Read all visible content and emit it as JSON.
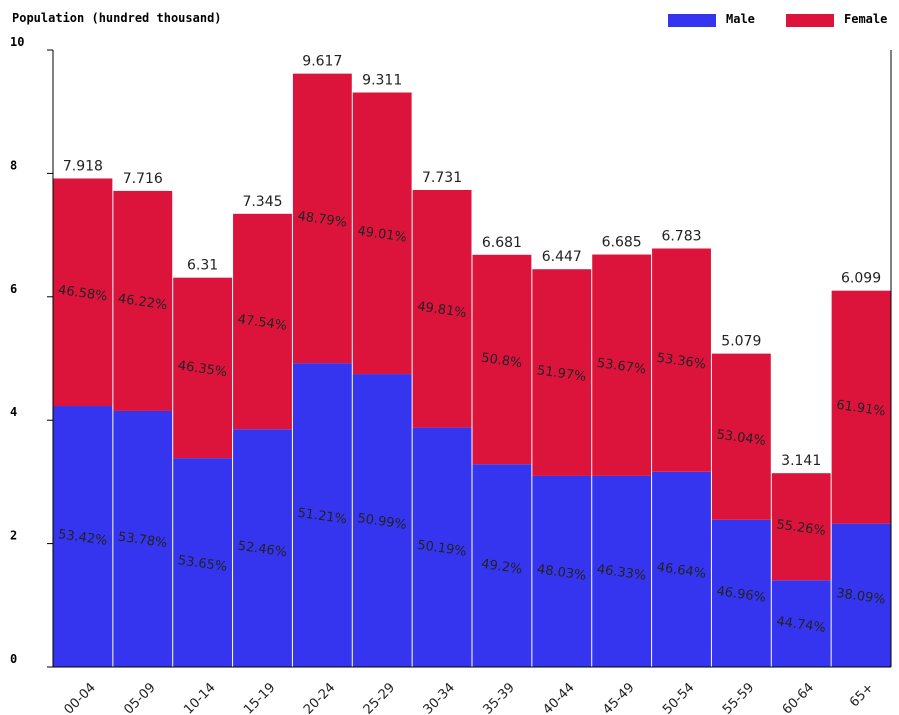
{
  "chart_data": {
    "type": "stacked_percent_bar",
    "title": "Population (hundred thousand)",
    "categories": [
      "00-04",
      "05-09",
      "10-14",
      "15-19",
      "20-24",
      "25-29",
      "30-34",
      "35-39",
      "40-44",
      "45-49",
      "50-54",
      "55-59",
      "60-64",
      "65+"
    ],
    "totals": [
      7.918,
      7.716,
      6.31,
      7.345,
      9.617,
      9.311,
      7.731,
      6.681,
      6.447,
      6.685,
      6.783,
      5.079,
      3.141,
      6.099
    ],
    "series": [
      {
        "name": "Male",
        "color": "#3535f0",
        "values": [
          53.42,
          53.78,
          53.65,
          52.46,
          51.21,
          50.99,
          50.19,
          49.2,
          48.03,
          46.33,
          46.64,
          46.96,
          44.74,
          38.09
        ],
        "value_labels": [
          "53.42%",
          "53.78%",
          "53.65%",
          "52.46%",
          "51.21%",
          "50.99%",
          "50.19%",
          "49.2%",
          "48.03%",
          "46.33%",
          "46.64%",
          "46.96%",
          "44.74%",
          "38.09%"
        ]
      },
      {
        "name": "Female",
        "color": "#dc143c",
        "values": [
          46.58,
          46.22,
          46.35,
          47.54,
          48.79,
          49.01,
          49.81,
          50.8,
          51.97,
          53.67,
          53.36,
          53.04,
          55.26,
          61.91
        ],
        "value_labels": [
          "46.58%",
          "46.22%",
          "46.35%",
          "47.54%",
          "48.79%",
          "49.01%",
          "49.81%",
          "50.8%",
          "51.97%",
          "53.67%",
          "53.36%",
          "53.04%",
          "55.26%",
          "61.91%"
        ]
      }
    ],
    "ylim": [
      0,
      10
    ],
    "yticks": [
      0,
      2,
      4,
      6,
      8,
      10
    ],
    "legend": "top-right"
  }
}
